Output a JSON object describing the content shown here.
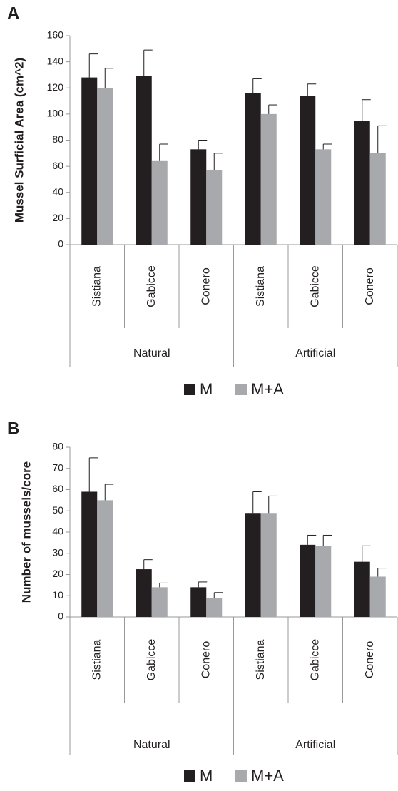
{
  "chart_data": [
    {
      "type": "bar",
      "panel_label": "A",
      "y_label": "Mussel Surficial Area (cm^2)",
      "categories": [
        "Sistiana",
        "Gabicce",
        "Conero",
        "Sistiana",
        "Gabicce",
        "Conero"
      ],
      "groups": [
        "Natural",
        "Artificial"
      ],
      "series": [
        {
          "name": "M",
          "color": "#231f20",
          "values": [
            128,
            129,
            73,
            116,
            114,
            95
          ],
          "errors": [
            18,
            20,
            7,
            11,
            9,
            16
          ]
        },
        {
          "name": "M+A",
          "color": "#a7a9ac",
          "values": [
            120,
            64,
            57,
            100,
            73,
            70
          ],
          "errors": [
            15,
            13,
            13,
            7,
            4,
            21
          ]
        }
      ],
      "ylim": [
        0,
        160
      ],
      "yticks": [
        0,
        20,
        40,
        60,
        80,
        100,
        120,
        140,
        160
      ],
      "legend": "bottom"
    },
    {
      "type": "bar",
      "panel_label": "B",
      "y_label": "Number of mussels/core",
      "categories": [
        "Sistiana",
        "Gabicce",
        "Conero",
        "Sistiana",
        "Gabicce",
        "Conero"
      ],
      "groups": [
        "Natural",
        "Artificial"
      ],
      "series": [
        {
          "name": "M",
          "color": "#231f20",
          "values": [
            59,
            22.5,
            14,
            49,
            34,
            26
          ],
          "errors": [
            16,
            4.5,
            2.5,
            10,
            4.5,
            7.5
          ]
        },
        {
          "name": "M+A",
          "color": "#a7a9ac",
          "values": [
            55,
            14,
            9,
            49,
            33.5,
            19
          ],
          "errors": [
            7.5,
            2,
            2.5,
            8,
            5,
            4
          ]
        }
      ],
      "ylim": [
        0,
        80
      ],
      "yticks": [
        0,
        10,
        20,
        30,
        40,
        50,
        60,
        70,
        80
      ],
      "legend": "bottom"
    }
  ]
}
